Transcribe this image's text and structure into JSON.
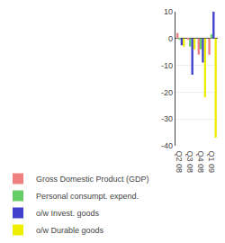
{
  "chart_data": {
    "type": "bar",
    "categories": [
      "Q2 08",
      "Q3 08",
      "Q4 08",
      "Q1 09"
    ],
    "series": [
      {
        "name": "Gross Domestic Product (GDP)",
        "color": "#f08080",
        "values": [
          2.0,
          -0.5,
          -6.0,
          -6.0
        ]
      },
      {
        "name": "Personal consumpt. expend.",
        "color": "#66cc66",
        "values": [
          -0.5,
          -3.0,
          -4.0,
          1.5
        ]
      },
      {
        "name": "o/w Invest. goods",
        "color": "#4040cc",
        "values": [
          -2.5,
          -13.5,
          -9.0,
          10.0
        ]
      },
      {
        "name": "o/w Durable goods",
        "color": "#eeee00",
        "values": [
          -3.0,
          -4.0,
          -22.0,
          -37.0
        ]
      }
    ],
    "ylim": [
      -40,
      10
    ],
    "yticks": [
      -40,
      -30,
      -20,
      -10,
      0,
      10
    ],
    "grid": true,
    "legend": "bottom"
  }
}
